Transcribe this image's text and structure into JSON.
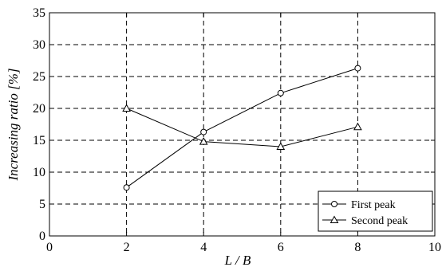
{
  "chart_data": {
    "type": "line",
    "title": "",
    "xlabel": "L / B",
    "ylabel": "Increasing ratio [%]",
    "xlim": [
      0,
      10
    ],
    "ylim": [
      0,
      35
    ],
    "xticks": [
      0,
      2,
      4,
      6,
      8,
      10
    ],
    "yticks": [
      0,
      5,
      10,
      15,
      20,
      25,
      30,
      35
    ],
    "grid": "dashed",
    "legend_position": "bottom-right",
    "x": [
      2,
      4,
      6,
      8
    ],
    "series": [
      {
        "name": "First peak",
        "marker": "circle",
        "color": "#000000",
        "values": [
          7.6,
          16.3,
          22.4,
          26.3
        ]
      },
      {
        "name": "Second peak",
        "marker": "triangle",
        "color": "#000000",
        "values": [
          20.0,
          14.8,
          14.0,
          17.1
        ]
      }
    ]
  }
}
